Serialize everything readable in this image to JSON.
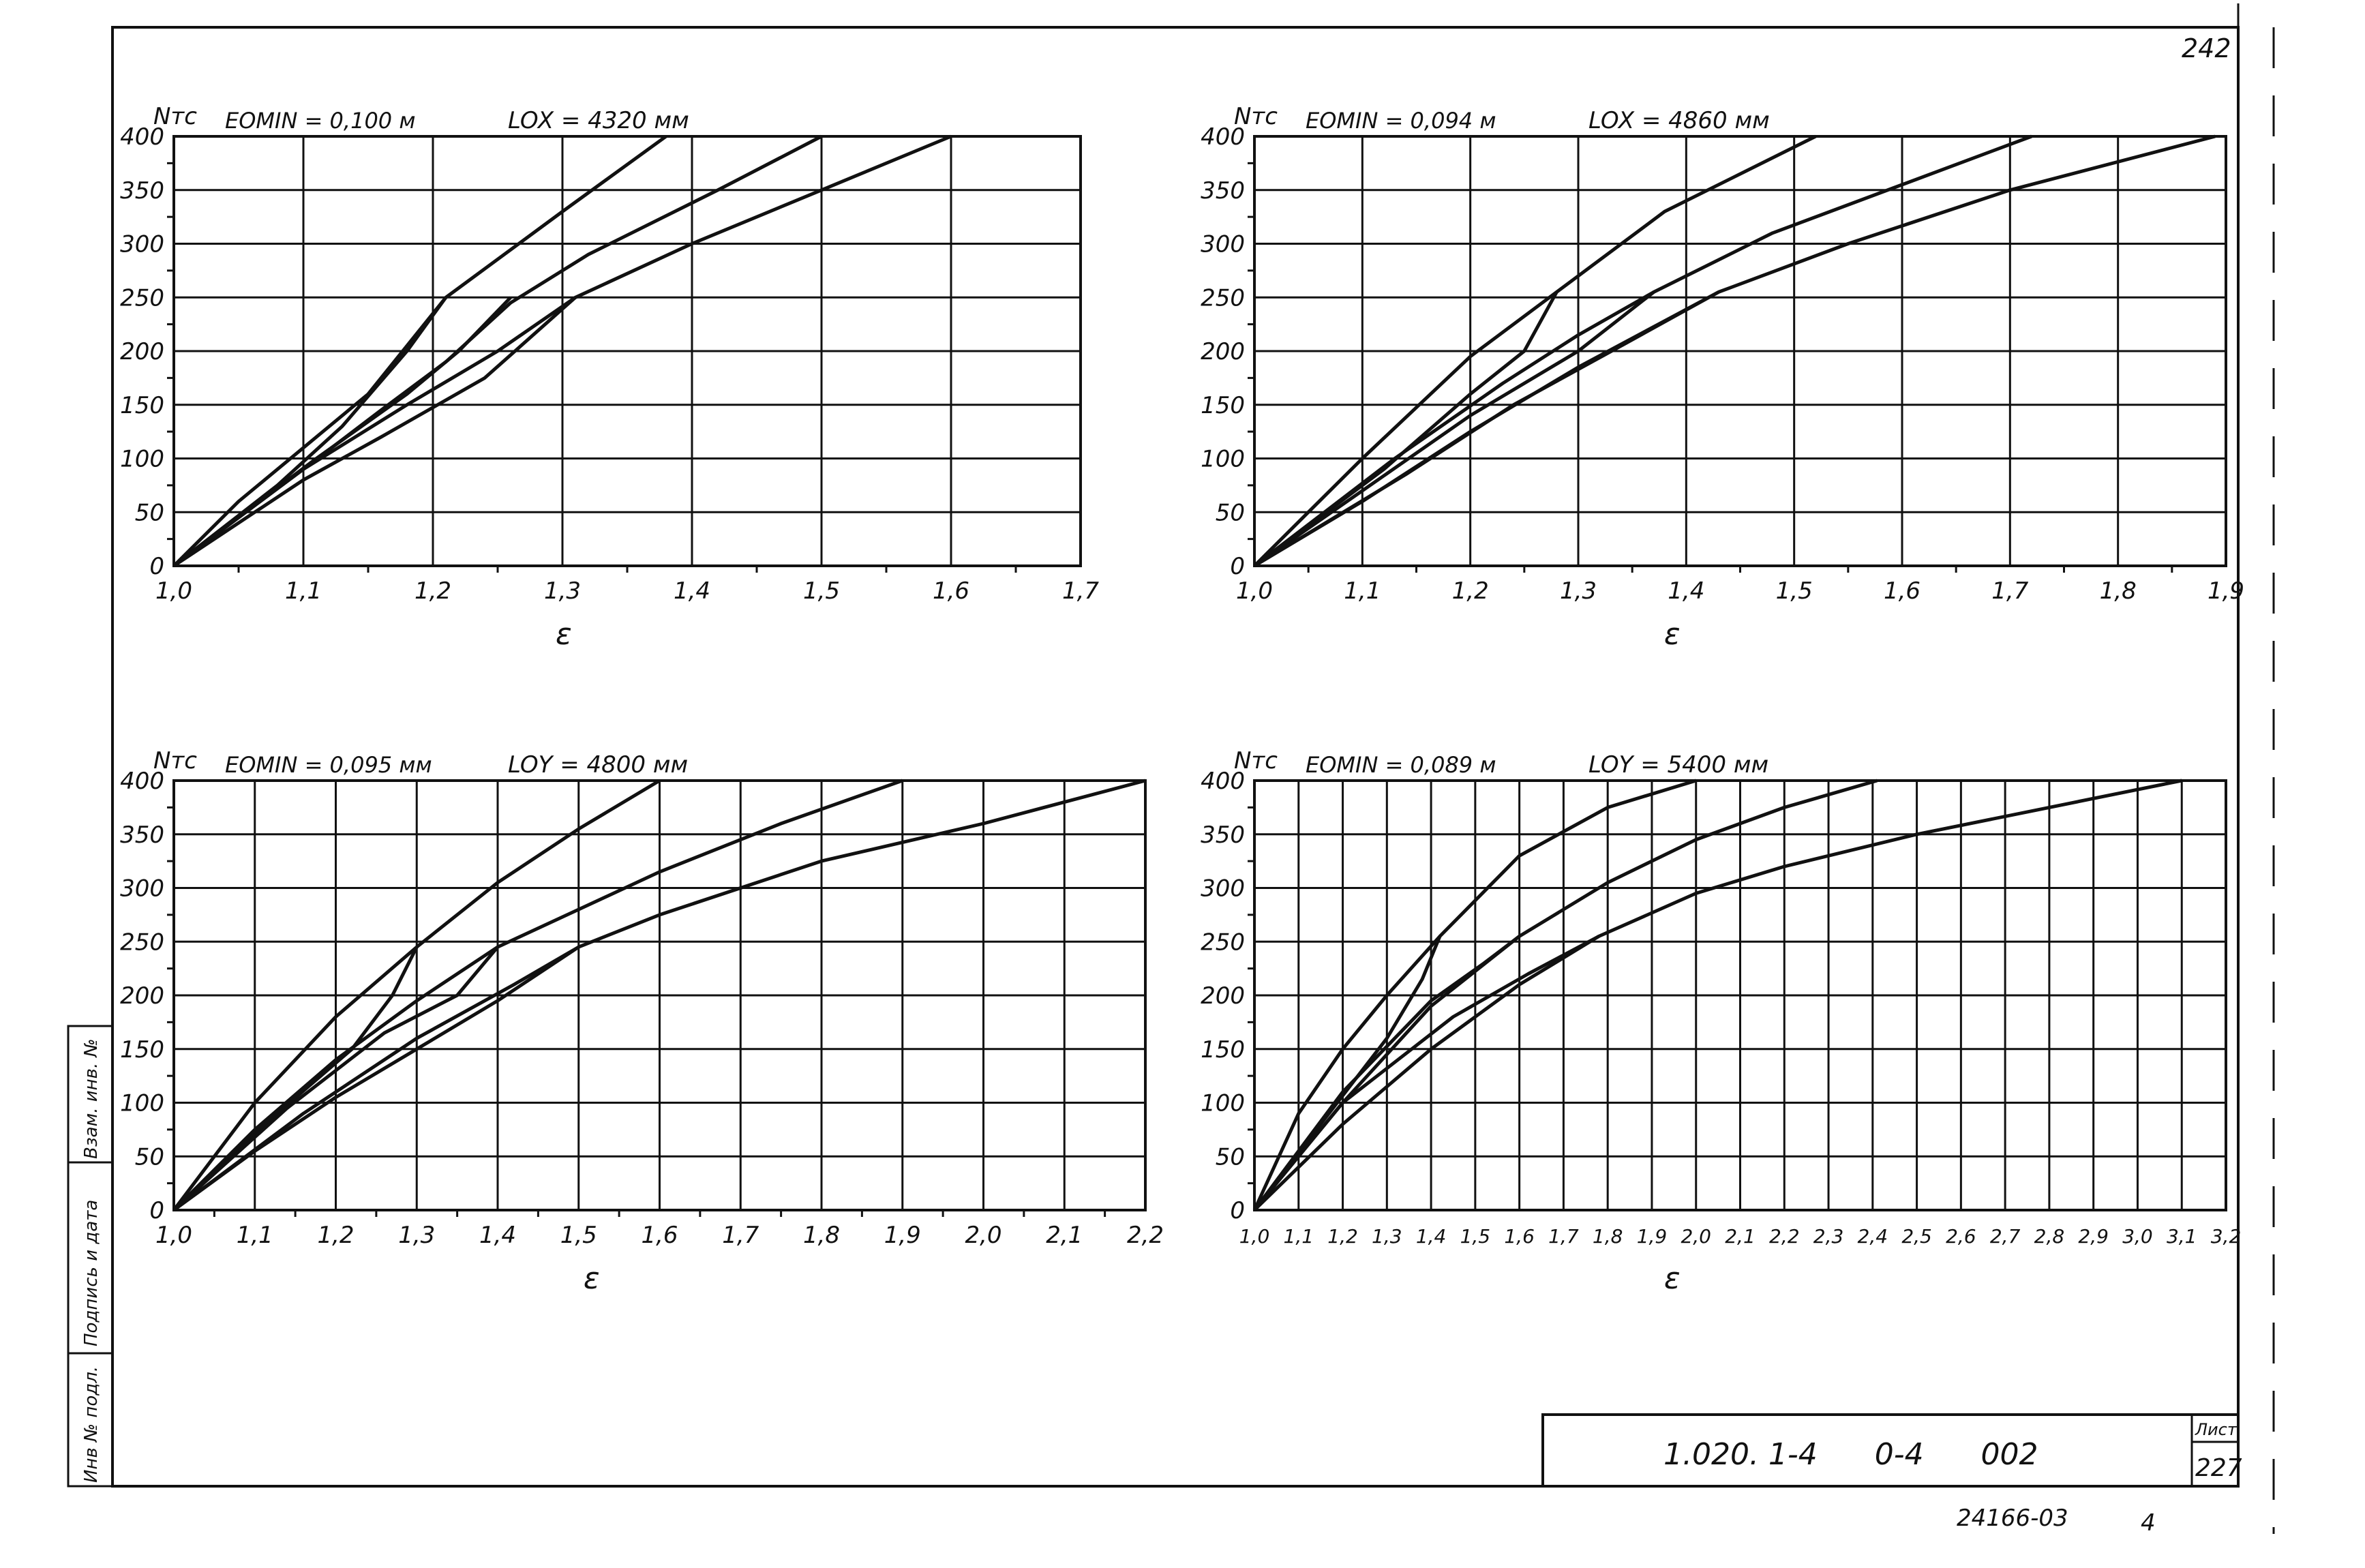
{
  "sheet": {
    "corner_top_right": "242",
    "title_block": {
      "designation": "1.020. 1-4      0-4      002",
      "sheet_label": "Лист",
      "sheet_number": "227"
    },
    "stamp": "24166-03",
    "stamp_page": "4",
    "side_stamp": {
      "field_1": "Инв № подл.",
      "field_2": "Подпись и дата",
      "field_3": "Взам. инв. №"
    }
  },
  "chart_data": [
    {
      "type": "line",
      "ylabel": "Nтс",
      "xlabel": "ε",
      "params": {
        "e": "EOMIN = 0,100 м",
        "l": "LOX = 4320 мм"
      },
      "xlim": [
        1.0,
        1.7
      ],
      "ylim": [
        0,
        400
      ],
      "x_ticks": [
        1.0,
        1.1,
        1.2,
        1.3,
        1.4,
        1.5,
        1.6,
        1.7
      ],
      "x_tick_labels": [
        "1,0",
        "1,1",
        "1,2",
        "1,3",
        "1,4",
        "1,5",
        "1,6",
        "1,7"
      ],
      "y_ticks": [
        0,
        50,
        100,
        150,
        200,
        250,
        300,
        350,
        400
      ],
      "series": [
        {
          "x": [
            1.0,
            1.05,
            1.1,
            1.15,
            1.21,
            1.3,
            1.38
          ],
          "y": [
            0,
            60,
            110,
            160,
            250,
            330,
            400
          ]
        },
        {
          "x": [
            1.0,
            1.05,
            1.1,
            1.16,
            1.21,
            1.26,
            1.32,
            1.42,
            1.5
          ],
          "y": [
            0,
            45,
            90,
            145,
            190,
            245,
            290,
            350,
            400
          ]
        },
        {
          "x": [
            1.0,
            1.05,
            1.1,
            1.16,
            1.24,
            1.31,
            1.4,
            1.5,
            1.6
          ],
          "y": [
            0,
            40,
            80,
            120,
            175,
            250,
            300,
            350,
            400
          ]
        },
        {
          "x": [
            1.0,
            1.08,
            1.13,
            1.18,
            1.21
          ],
          "y": [
            0,
            75,
            130,
            200,
            250
          ]
        },
        {
          "x": [
            1.0,
            1.11,
            1.18,
            1.22,
            1.26
          ],
          "y": [
            0,
            100,
            160,
            200,
            250
          ]
        },
        {
          "x": [
            1.0,
            1.1,
            1.18,
            1.25,
            1.31
          ],
          "y": [
            0,
            90,
            150,
            200,
            250
          ]
        }
      ]
    },
    {
      "type": "line",
      "ylabel": "Nтс",
      "xlabel": "ε",
      "params": {
        "e": "EOMIN = 0,094 м",
        "l": "LOX = 4860 мм"
      },
      "xlim": [
        1.0,
        1.9
      ],
      "ylim": [
        0,
        400
      ],
      "x_ticks": [
        1.0,
        1.1,
        1.2,
        1.3,
        1.4,
        1.5,
        1.6,
        1.7,
        1.8,
        1.9
      ],
      "x_tick_labels": [
        "1,0",
        "1,1",
        "1,2",
        "1,3",
        "1,4",
        "1,5",
        "1,6",
        "1,7",
        "1,8",
        "1,9"
      ],
      "y_ticks": [
        0,
        50,
        100,
        150,
        200,
        250,
        300,
        350,
        400
      ],
      "series": [
        {
          "x": [
            1.0,
            1.1,
            1.2,
            1.28,
            1.38,
            1.52
          ],
          "y": [
            0,
            100,
            195,
            255,
            330,
            400
          ]
        },
        {
          "x": [
            1.0,
            1.1,
            1.2,
            1.3,
            1.37,
            1.48,
            1.6,
            1.72
          ],
          "y": [
            0,
            70,
            140,
            200,
            255,
            310,
            355,
            400
          ]
        },
        {
          "x": [
            1.0,
            1.1,
            1.2,
            1.3,
            1.43,
            1.55,
            1.7,
            1.89
          ],
          "y": [
            0,
            60,
            125,
            185,
            255,
            300,
            350,
            400
          ]
        },
        {
          "x": [
            1.0,
            1.12,
            1.2,
            1.25,
            1.28
          ],
          "y": [
            0,
            90,
            160,
            200,
            255
          ]
        },
        {
          "x": [
            1.0,
            1.13,
            1.23,
            1.3,
            1.37
          ],
          "y": [
            0,
            100,
            170,
            215,
            255
          ]
        },
        {
          "x": [
            1.0,
            1.14,
            1.24,
            1.34,
            1.43
          ],
          "y": [
            0,
            85,
            150,
            205,
            255
          ]
        }
      ]
    },
    {
      "type": "line",
      "ylabel": "Nтс",
      "xlabel": "ε",
      "params": {
        "e": "EOMIN = 0,095 мм",
        "l": "LOY = 4800 мм"
      },
      "xlim": [
        1.0,
        2.2
      ],
      "ylim": [
        0,
        400
      ],
      "x_ticks": [
        1.0,
        1.1,
        1.2,
        1.3,
        1.4,
        1.5,
        1.6,
        1.7,
        1.8,
        1.9,
        2.0,
        2.1,
        2.2
      ],
      "x_tick_labels": [
        "1,0",
        "1,1",
        "1,2",
        "1,3",
        "1,4",
        "1,5",
        "1,6",
        "1,7",
        "1,8",
        "1,9",
        "2,0",
        "2,1",
        "2,2"
      ],
      "y_ticks": [
        0,
        50,
        100,
        150,
        200,
        250,
        300,
        350,
        400
      ],
      "series": [
        {
          "x": [
            1.0,
            1.1,
            1.2,
            1.3,
            1.4,
            1.5,
            1.6
          ],
          "y": [
            0,
            100,
            180,
            245,
            305,
            355,
            400
          ]
        },
        {
          "x": [
            1.0,
            1.1,
            1.2,
            1.3,
            1.4,
            1.5,
            1.6,
            1.75,
            1.9
          ],
          "y": [
            0,
            75,
            140,
            195,
            245,
            280,
            315,
            360,
            400
          ]
        },
        {
          "x": [
            1.0,
            1.1,
            1.2,
            1.3,
            1.4,
            1.5,
            1.6,
            1.8,
            2.0,
            2.2
          ],
          "y": [
            0,
            55,
            105,
            150,
            195,
            245,
            275,
            325,
            360,
            400
          ]
        },
        {
          "x": [
            1.0,
            1.12,
            1.22,
            1.27,
            1.3
          ],
          "y": [
            0,
            85,
            150,
            200,
            245
          ]
        },
        {
          "x": [
            1.0,
            1.14,
            1.26,
            1.35,
            1.4
          ],
          "y": [
            0,
            95,
            165,
            200,
            245
          ]
        },
        {
          "x": [
            1.0,
            1.16,
            1.3,
            1.42,
            1.5
          ],
          "y": [
            0,
            90,
            160,
            210,
            245
          ]
        }
      ]
    },
    {
      "type": "line",
      "ylabel": "Nтс",
      "xlabel": "ε",
      "params": {
        "e": "EOMIN = 0,089 м",
        "l": "LOY = 5400 мм"
      },
      "xlim": [
        1.0,
        3.2
      ],
      "ylim": [
        0,
        400
      ],
      "x_ticks": [
        1.0,
        1.1,
        1.2,
        1.3,
        1.4,
        1.5,
        1.6,
        1.7,
        1.8,
        1.9,
        2.0,
        2.1,
        2.2,
        2.3,
        2.4,
        2.5,
        2.6,
        2.7,
        2.8,
        2.9,
        3.0,
        3.1,
        3.2
      ],
      "x_tick_labels": [
        "1,0",
        "1,1",
        "1,2",
        "1,3",
        "1,4",
        "1,5",
        "1,6",
        "1,7",
        "1,8",
        "1,9",
        "2,0",
        "2,1",
        "2,2",
        "2,3",
        "2,4",
        "2,5",
        "2,6",
        "2,7",
        "2,8",
        "2,9",
        "3,0",
        "3,1",
        "3,2"
      ],
      "y_ticks": [
        0,
        50,
        100,
        150,
        200,
        250,
        300,
        350,
        400
      ],
      "series": [
        {
          "x": [
            1.0,
            1.1,
            1.2,
            1.3,
            1.42,
            1.6,
            1.8,
            2.0
          ],
          "y": [
            0,
            90,
            150,
            200,
            255,
            330,
            375,
            400
          ]
        },
        {
          "x": [
            1.0,
            1.2,
            1.4,
            1.6,
            1.8,
            2.0,
            2.2,
            2.41
          ],
          "y": [
            0,
            100,
            190,
            255,
            305,
            345,
            375,
            400
          ]
        },
        {
          "x": [
            1.0,
            1.2,
            1.4,
            1.6,
            1.78,
            2.0,
            2.2,
            2.5,
            2.8,
            3.1
          ],
          "y": [
            0,
            80,
            150,
            210,
            255,
            295,
            320,
            350,
            375,
            400
          ]
        },
        {
          "x": [
            1.0,
            1.15,
            1.3,
            1.38,
            1.42
          ],
          "y": [
            0,
            80,
            160,
            215,
            255
          ]
        },
        {
          "x": [
            1.0,
            1.2,
            1.4,
            1.52,
            1.6
          ],
          "y": [
            0,
            110,
            195,
            230,
            255
          ]
        },
        {
          "x": [
            1.0,
            1.2,
            1.45,
            1.62,
            1.78
          ],
          "y": [
            0,
            100,
            180,
            220,
            255
          ]
        }
      ]
    }
  ]
}
